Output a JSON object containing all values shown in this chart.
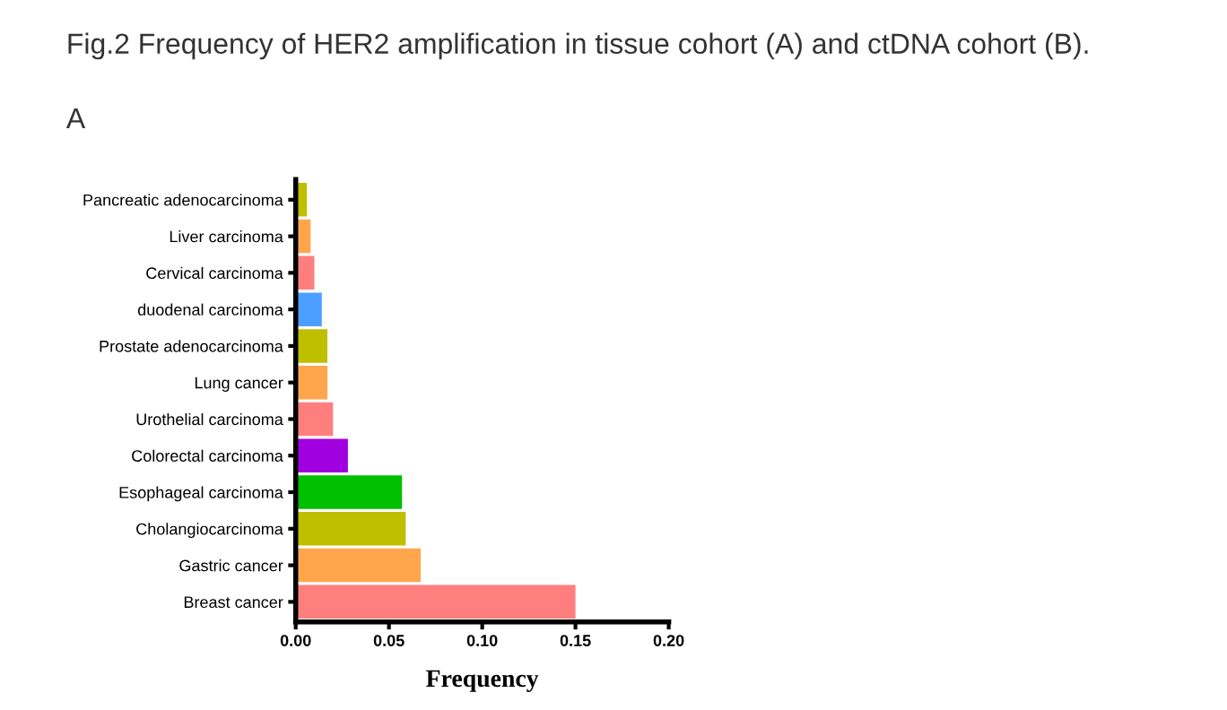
{
  "chart_data": {
    "type": "bar",
    "orientation": "horizontal",
    "title": "Fig.2 Frequency of HER2 amplification in tissue cohort (A) and ctDNA cohort (B).",
    "subtitle": "A",
    "xlabel": "Frequency",
    "categories": [
      "Pancreatic adenocarcinoma",
      "Liver carcinoma",
      "Cervical carcinoma",
      "duodenal carcinoma",
      "Prostate adenocarcinoma",
      "Lung cancer",
      "Urothelial carcinoma",
      "Colorectal carcinoma",
      "Esophageal carcinoma",
      "Cholangiocarcinoma",
      "Gastric cancer",
      "Breast cancer"
    ],
    "values": [
      0.006,
      0.008,
      0.01,
      0.014,
      0.017,
      0.017,
      0.02,
      0.028,
      0.057,
      0.059,
      0.067,
      0.15
    ],
    "colors": [
      "#bfbf00",
      "#ffa64d",
      "#ff7f7f",
      "#4d9fff",
      "#bfbf00",
      "#ffa64d",
      "#ff7f7f",
      "#a000e0",
      "#00c000",
      "#bfbf00",
      "#ffa64d",
      "#ff7f7f"
    ],
    "xlim": [
      0,
      0.2
    ],
    "xticks": [
      {
        "value": 0,
        "label": "0.00"
      },
      {
        "value": 0.05,
        "label": "0.05"
      },
      {
        "value": 0.1,
        "label": "0.10"
      },
      {
        "value": 0.15,
        "label": "0.15"
      },
      {
        "value": 0.2,
        "label": "0.20"
      }
    ],
    "grid": false,
    "legend": false
  }
}
